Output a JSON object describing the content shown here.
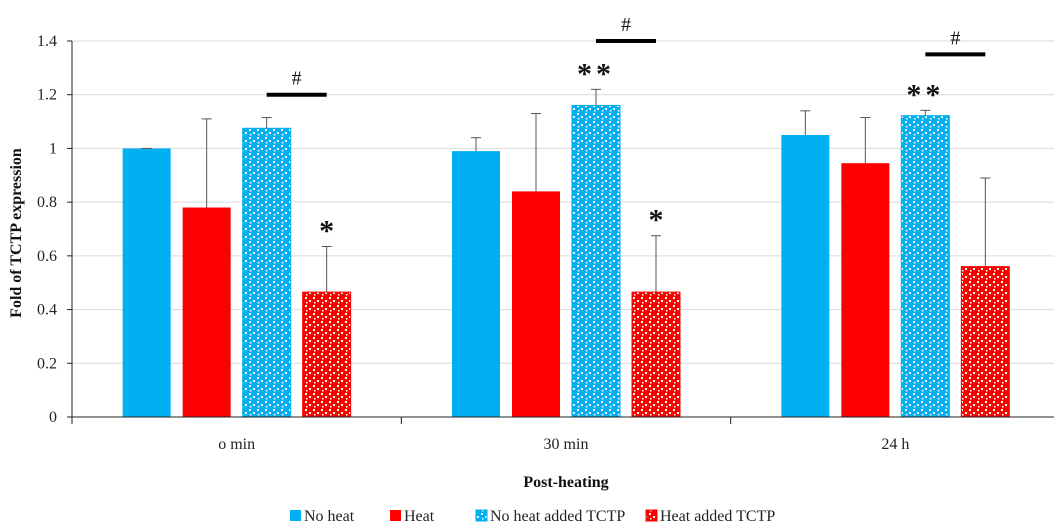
{
  "chart_data": {
    "type": "bar",
    "title": "",
    "xlabel": "Post-heating",
    "ylabel": "Fold of TCTP expression",
    "ylim": [
      0,
      1.4
    ],
    "yticks": [
      "0",
      "0.2",
      "0.4",
      "0.6",
      "0.8",
      "1",
      "1.2",
      "1.4"
    ],
    "ytick_values": [
      0,
      0.2,
      0.4,
      0.6,
      0.8,
      1.0,
      1.2,
      1.4
    ],
    "grid": true,
    "legend_position": "bottom",
    "categories": [
      "o min",
      "30 min",
      "24 h"
    ],
    "series": [
      {
        "name": "No heat",
        "color": "#00b0f0",
        "pattern": "solid",
        "values": [
          1.0,
          0.99,
          1.05
        ],
        "errors": [
          0.0,
          0.05,
          0.09
        ]
      },
      {
        "name": "Heat",
        "color": "#ff0000",
        "pattern": "solid",
        "values": [
          0.78,
          0.84,
          0.945
        ],
        "errors": [
          0.33,
          0.29,
          0.17
        ]
      },
      {
        "name": "No heat added TCTP",
        "color": "#00b0f0",
        "pattern": "dotted",
        "values": [
          1.075,
          1.16,
          1.122
        ],
        "errors": [
          0.04,
          0.06,
          0.02
        ]
      },
      {
        "name": "Heat added TCTP",
        "color": "#ff0000",
        "pattern": "dotted",
        "values": [
          0.465,
          0.465,
          0.56
        ],
        "errors": [
          0.17,
          0.21,
          0.33
        ]
      }
    ],
    "annotations": [
      {
        "category": 0,
        "series": 3,
        "text": "*"
      },
      {
        "category": 1,
        "series": 2,
        "text": "**"
      },
      {
        "category": 1,
        "series": 3,
        "text": "*"
      },
      {
        "category": 2,
        "series": 2,
        "text": "**"
      }
    ],
    "significance_bars": [
      {
        "category": 0,
        "text": "#",
        "level": 1.2
      },
      {
        "category": 1,
        "text": "#",
        "level": 1.4
      },
      {
        "category": 2,
        "text": "#",
        "level": 1.35
      }
    ]
  }
}
